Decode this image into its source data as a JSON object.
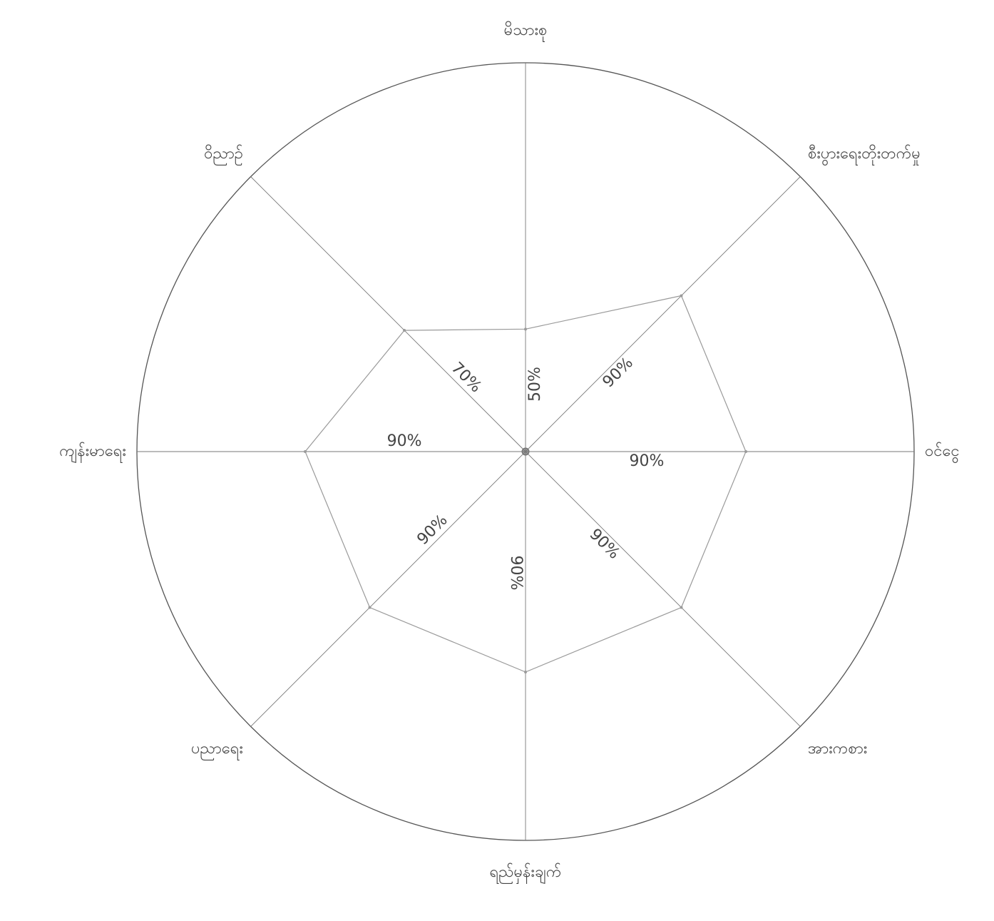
{
  "chart_data": {
    "type": "radar",
    "categories": [
      "မိသားစု",
      "စီးပွားရေးတိုးတက်မှု",
      "ဝင်ငွေ",
      "အားကစား",
      "ရည်မှန်းချက်",
      "ပညာရေး",
      "ကျန်းမာရေး",
      "ဝိညာဉ်"
    ],
    "values": [
      50,
      90,
      90,
      90,
      90,
      90,
      90,
      70
    ],
    "value_labels": [
      "50%",
      "90%",
      "90%",
      "90%",
      "90%",
      "90%",
      "90%",
      "70%"
    ],
    "color": "#9a9a9a"
  }
}
